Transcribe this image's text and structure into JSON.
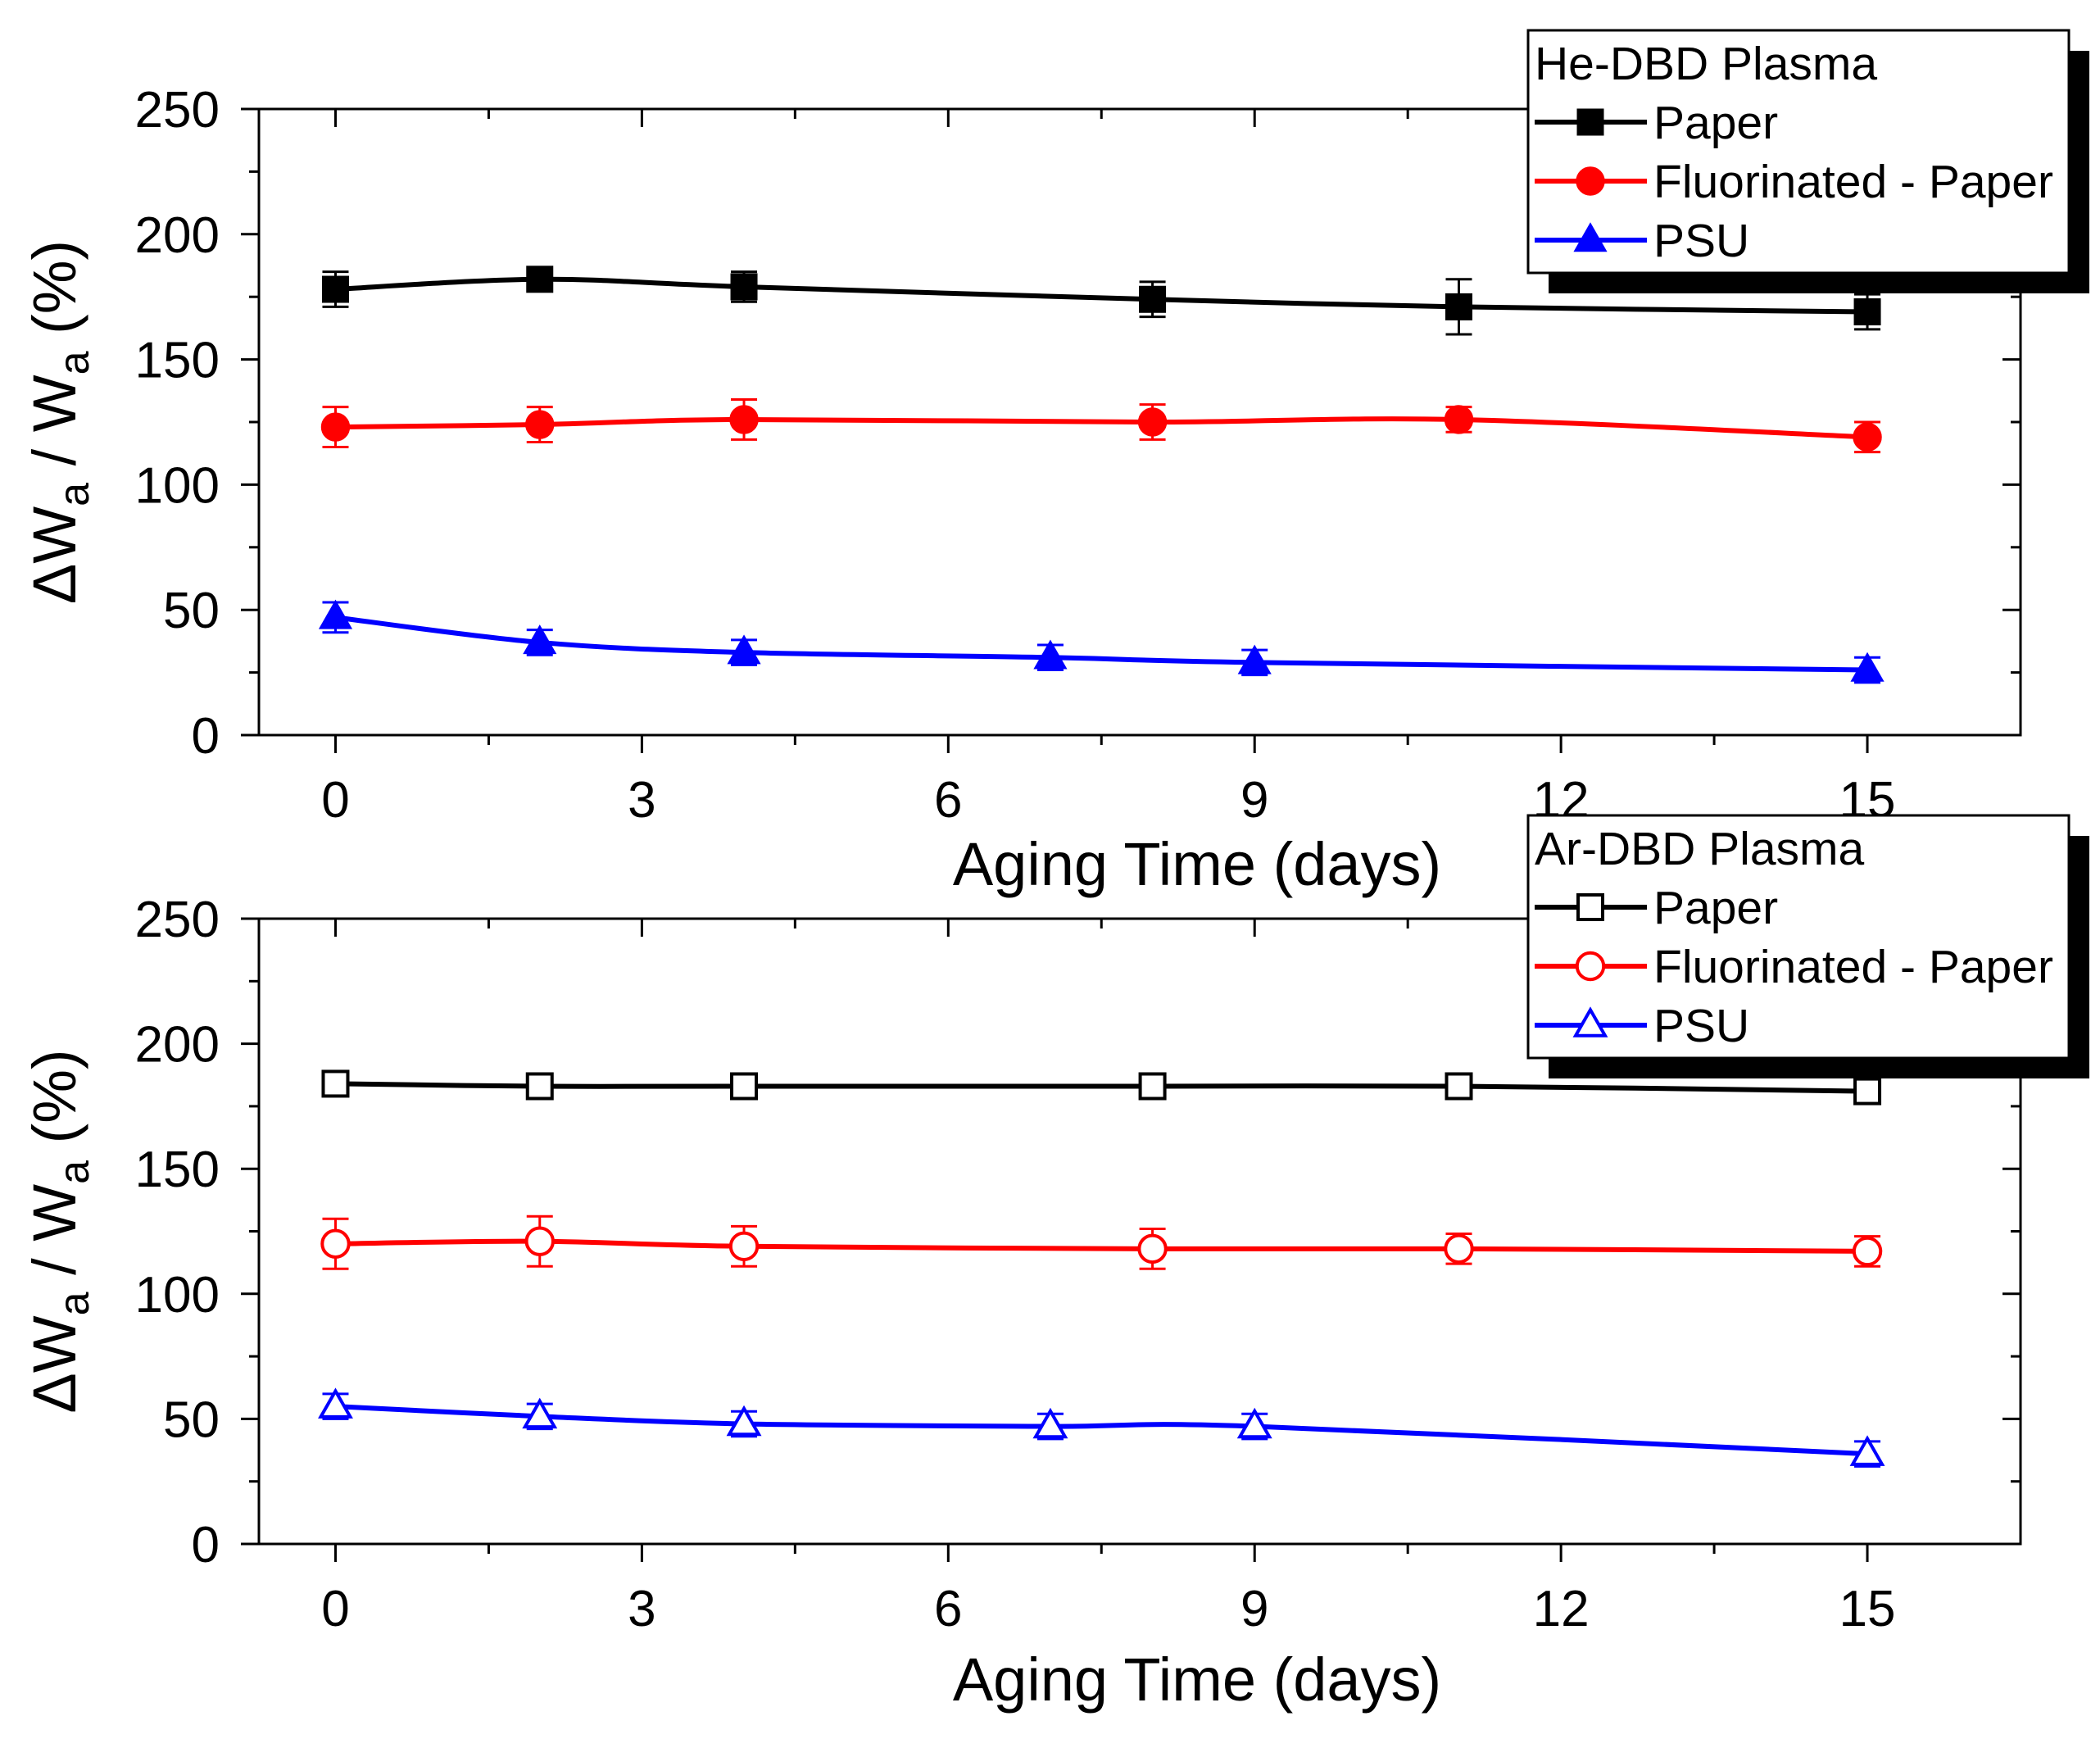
{
  "chart_data": [
    {
      "type": "line",
      "panel": "top",
      "title": "",
      "xlabel": "Aging Time (days)",
      "ylabel": "ΔW",
      "ylabel_sub": "a",
      "ylabel_mid": " / W",
      "ylabel_sub2": "a",
      "ylabel_tail": " (%)",
      "xlim": [
        -0.75,
        16.5
      ],
      "ylim": [
        0,
        250
      ],
      "xticks": [
        0,
        3,
        6,
        9,
        12,
        15
      ],
      "xtick_labels": [
        "0",
        "3",
        "6",
        "9",
        "12",
        "15"
      ],
      "yticks": [
        0,
        50,
        100,
        150,
        200,
        250
      ],
      "ytick_labels": [
        "0",
        "50",
        "100",
        "150",
        "200",
        "250"
      ],
      "legend": {
        "title": "He-DBD Plasma",
        "position": "top-right"
      },
      "series": [
        {
          "name": "Paper",
          "color": "#000000",
          "marker": "square",
          "filled": true,
          "x": [
            0,
            2,
            4,
            8,
            11,
            15
          ],
          "y": [
            178,
            182,
            179,
            174,
            171,
            169
          ],
          "err": [
            7,
            4,
            6,
            7,
            11,
            7
          ]
        },
        {
          "name": "Fluorinated - Paper",
          "color": "#ff0000",
          "marker": "circle",
          "filled": true,
          "x": [
            0,
            2,
            4,
            8,
            11,
            15
          ],
          "y": [
            123,
            124,
            126,
            125,
            126,
            119
          ],
          "err": [
            8,
            7,
            8,
            7,
            5,
            6
          ]
        },
        {
          "name": "PSU",
          "color": "#0000ff",
          "marker": "triangle",
          "filled": true,
          "x": [
            0,
            2,
            4,
            7,
            9,
            15
          ],
          "y": [
            47,
            37,
            33,
            31,
            29,
            26
          ],
          "err": [
            6,
            5,
            5,
            5,
            5,
            5
          ]
        }
      ]
    },
    {
      "type": "line",
      "panel": "bottom",
      "title": "",
      "xlabel": "Aging Time (days)",
      "ylabel": "ΔW",
      "ylabel_sub": "a",
      "ylabel_mid": " / W",
      "ylabel_sub2": "a",
      "ylabel_tail": " (%)",
      "xlim": [
        -0.75,
        16.5
      ],
      "ylim": [
        0,
        250
      ],
      "xticks": [
        0,
        3,
        6,
        9,
        12,
        15
      ],
      "xtick_labels": [
        "0",
        "3",
        "6",
        "9",
        "12",
        "15"
      ],
      "yticks": [
        0,
        50,
        100,
        150,
        200,
        250
      ],
      "ytick_labels": [
        "0",
        "50",
        "100",
        "150",
        "200",
        "250"
      ],
      "legend": {
        "title": "Ar-DBD Plasma",
        "position": "top-right"
      },
      "series": [
        {
          "name": "Paper",
          "color": "#000000",
          "marker": "square",
          "filled": false,
          "x": [
            0,
            2,
            4,
            8,
            11,
            15
          ],
          "y": [
            184,
            183,
            183,
            183,
            183,
            181
          ],
          "err": [
            3,
            3,
            3,
            3,
            3,
            3
          ]
        },
        {
          "name": "Fluorinated - Paper",
          "color": "#ff0000",
          "marker": "circle",
          "filled": false,
          "x": [
            0,
            2,
            4,
            8,
            11,
            15
          ],
          "y": [
            120,
            121,
            119,
            118,
            118,
            117
          ],
          "err": [
            10,
            10,
            8,
            8,
            6,
            6
          ]
        },
        {
          "name": "PSU",
          "color": "#0000ff",
          "marker": "triangle",
          "filled": false,
          "x": [
            0,
            2,
            4,
            7,
            9,
            15
          ],
          "y": [
            55,
            51,
            48,
            47,
            47,
            36
          ],
          "err": [
            5,
            5,
            5,
            5,
            5,
            5
          ]
        }
      ]
    }
  ]
}
